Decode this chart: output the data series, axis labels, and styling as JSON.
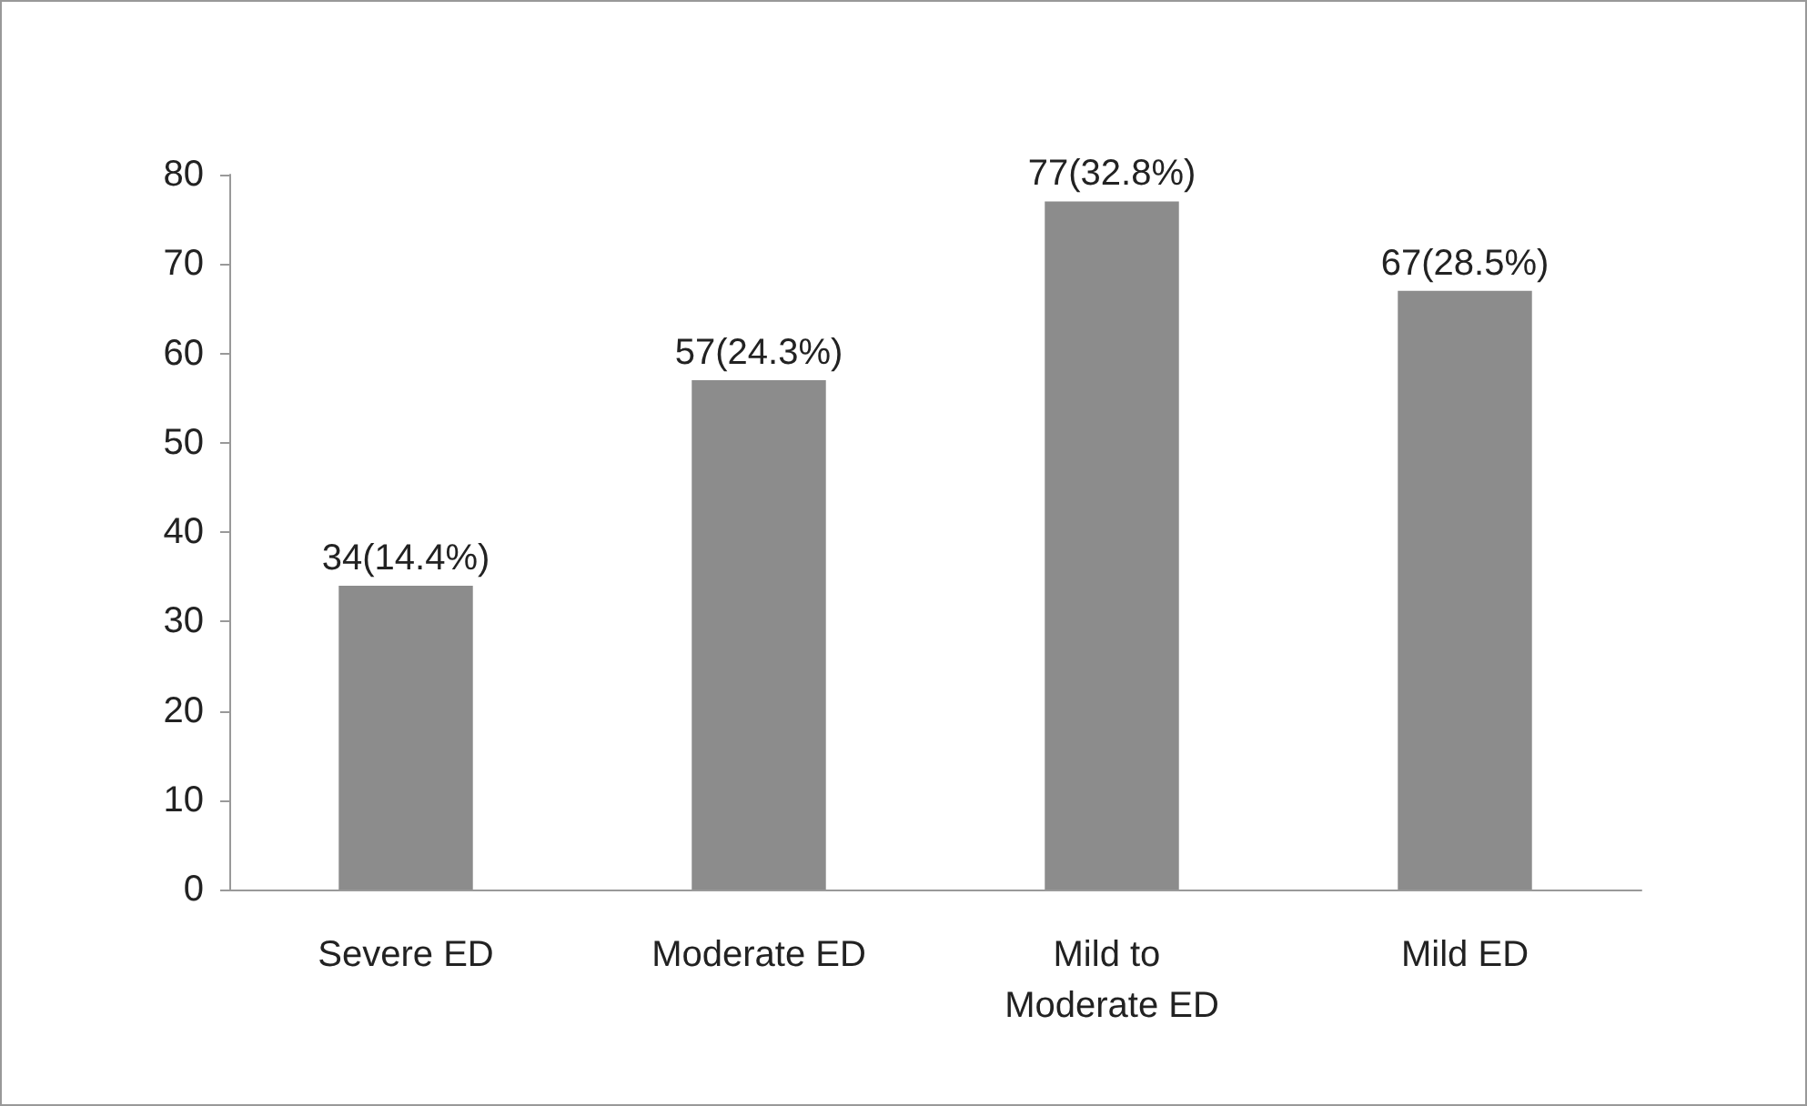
{
  "chart_data": {
    "type": "bar",
    "categories": [
      "Severe ED",
      "Moderate ED",
      "Mild to Moderate ED",
      "Mild ED"
    ],
    "values": [
      34,
      57,
      77,
      67
    ],
    "value_labels": [
      "34(14.4%)",
      "57(24.3%)",
      "77(32.8%)",
      "67(28.5%)"
    ],
    "color": "#8c8c8c",
    "ylim": [
      0,
      80
    ],
    "yticks": [
      0,
      10,
      20,
      30,
      40,
      50,
      60,
      70,
      80
    ]
  }
}
